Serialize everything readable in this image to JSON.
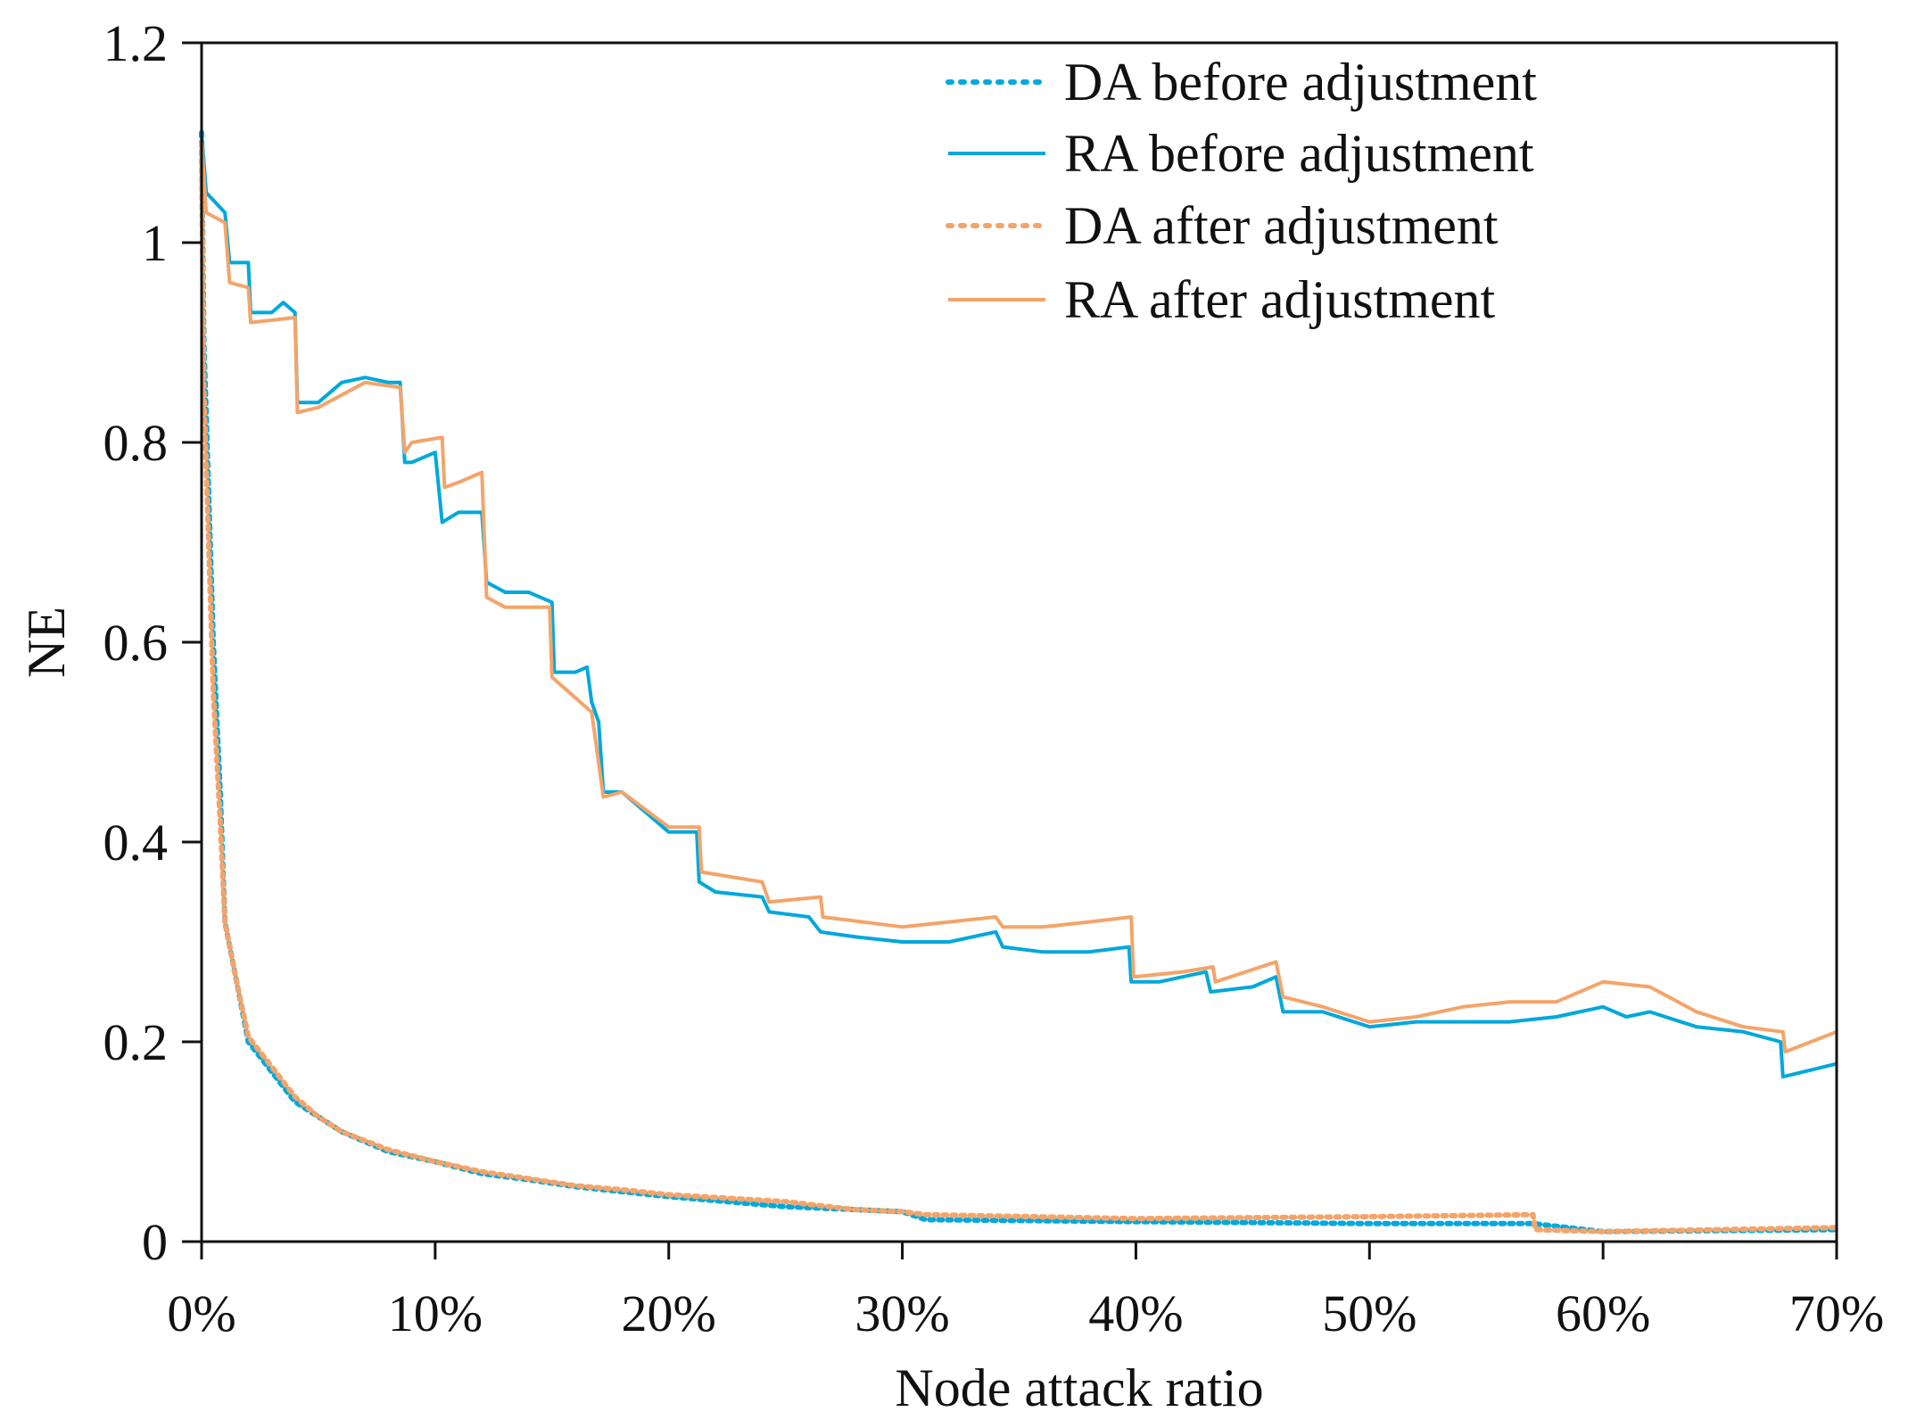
{
  "chart_data": {
    "type": "line",
    "title": "",
    "xlabel": "Node attack ratio",
    "ylabel": "NE",
    "xlim": [
      0,
      70
    ],
    "ylim": [
      0,
      1.2
    ],
    "x_ticks": [
      0,
      10,
      20,
      30,
      40,
      50,
      60,
      70
    ],
    "x_tick_labels": [
      "0%",
      "10%",
      "20%",
      "30%",
      "40%",
      "50%",
      "60%",
      "70%"
    ],
    "y_ticks": [
      0,
      0.2,
      0.4,
      0.6,
      0.8,
      1,
      1.2
    ],
    "y_tick_labels": [
      "0",
      "0.2",
      "0.4",
      "0.6",
      "0.8",
      "1",
      "1.2"
    ],
    "grid": false,
    "legend_position": "top-right",
    "series": [
      {
        "name": "DA before adjustment",
        "color": "#00A8DC",
        "style": "dotted",
        "x": [
          0,
          0.1,
          0.3,
          0.5,
          0.8,
          1,
          1.5,
          2,
          3,
          4,
          5,
          6,
          8,
          10,
          12,
          14,
          16,
          18,
          20,
          25,
          30,
          31,
          40,
          50,
          57,
          60,
          70
        ],
        "y": [
          1.11,
          0.9,
          0.75,
          0.6,
          0.45,
          0.32,
          0.26,
          0.2,
          0.17,
          0.14,
          0.125,
          0.11,
          0.09,
          0.08,
          0.068,
          0.062,
          0.055,
          0.05,
          0.045,
          0.035,
          0.03,
          0.022,
          0.02,
          0.018,
          0.018,
          0.01,
          0.012
        ]
      },
      {
        "name": "RA before adjustment",
        "color": "#00A8DC",
        "style": "solid",
        "x": [
          0,
          0.2,
          1,
          1.2,
          2,
          2.1,
          3,
          3.5,
          4,
          4.1,
          5,
          6,
          7,
          8,
          8.5,
          8.7,
          9,
          10,
          10.3,
          11,
          12,
          12.2,
          13,
          14,
          15,
          15.1,
          16,
          16.5,
          16.7,
          17,
          17.2,
          18,
          19,
          20,
          21.2,
          21.3,
          22,
          24,
          24.3,
          26,
          26.5,
          28,
          30,
          32,
          34,
          34.3,
          36,
          38,
          39.7,
          39.8,
          41,
          43,
          43.2,
          45,
          46,
          46.3,
          48,
          50,
          52,
          54,
          56,
          58,
          60,
          61,
          62,
          64,
          66,
          67.6,
          67.7,
          70
        ],
        "y": [
          1.11,
          1.05,
          1.03,
          0.98,
          0.98,
          0.93,
          0.93,
          0.94,
          0.93,
          0.84,
          0.84,
          0.86,
          0.865,
          0.86,
          0.86,
          0.78,
          0.78,
          0.79,
          0.72,
          0.73,
          0.73,
          0.66,
          0.65,
          0.65,
          0.64,
          0.57,
          0.57,
          0.575,
          0.54,
          0.52,
          0.45,
          0.45,
          0.43,
          0.41,
          0.41,
          0.36,
          0.35,
          0.345,
          0.33,
          0.325,
          0.31,
          0.305,
          0.3,
          0.3,
          0.31,
          0.295,
          0.29,
          0.29,
          0.295,
          0.26,
          0.26,
          0.27,
          0.25,
          0.255,
          0.265,
          0.23,
          0.23,
          0.215,
          0.22,
          0.22,
          0.22,
          0.225,
          0.235,
          0.225,
          0.23,
          0.215,
          0.21,
          0.2,
          0.165,
          0.178
        ]
      },
      {
        "name": "DA after adjustment",
        "color": "#F4A46A",
        "style": "dotted",
        "x": [
          0,
          0.1,
          0.3,
          0.5,
          0.8,
          1,
          1.5,
          2,
          3,
          4,
          5,
          6,
          8,
          10,
          12,
          14,
          16,
          18,
          20,
          25,
          28,
          30,
          31,
          40,
          50,
          57,
          57.1,
          60,
          70
        ],
        "y": [
          1.1,
          0.85,
          0.7,
          0.55,
          0.42,
          0.32,
          0.26,
          0.205,
          0.175,
          0.145,
          0.125,
          0.11,
          0.092,
          0.08,
          0.07,
          0.063,
          0.056,
          0.052,
          0.047,
          0.04,
          0.032,
          0.03,
          0.027,
          0.023,
          0.025,
          0.027,
          0.012,
          0.01,
          0.014
        ]
      },
      {
        "name": "RA after adjustment",
        "color": "#F4A46A",
        "style": "solid",
        "x": [
          0,
          0.2,
          1,
          1.2,
          2,
          2.1,
          4,
          4.1,
          5,
          7,
          8.5,
          8.7,
          9,
          10.3,
          10.4,
          11,
          12,
          12.2,
          13,
          14.9,
          15,
          16.7,
          17.2,
          18,
          20,
          21.3,
          21.4,
          24,
          24.3,
          26.5,
          26.6,
          30,
          32,
          34,
          34.3,
          36,
          38,
          39.8,
          39.9,
          42,
          43.3,
          43.4,
          46,
          46.3,
          48,
          50,
          52,
          54,
          56,
          58,
          60,
          62,
          64,
          66,
          67.7,
          67.8,
          70
        ],
        "y": [
          1.1,
          1.03,
          1.02,
          0.96,
          0.955,
          0.92,
          0.925,
          0.83,
          0.835,
          0.86,
          0.855,
          0.79,
          0.8,
          0.805,
          0.755,
          0.76,
          0.77,
          0.645,
          0.635,
          0.635,
          0.565,
          0.53,
          0.445,
          0.45,
          0.415,
          0.415,
          0.37,
          0.36,
          0.34,
          0.345,
          0.325,
          0.315,
          0.32,
          0.325,
          0.315,
          0.315,
          0.32,
          0.325,
          0.265,
          0.27,
          0.275,
          0.26,
          0.28,
          0.245,
          0.235,
          0.22,
          0.225,
          0.235,
          0.24,
          0.24,
          0.26,
          0.255,
          0.23,
          0.215,
          0.21,
          0.19,
          0.21
        ]
      }
    ]
  }
}
